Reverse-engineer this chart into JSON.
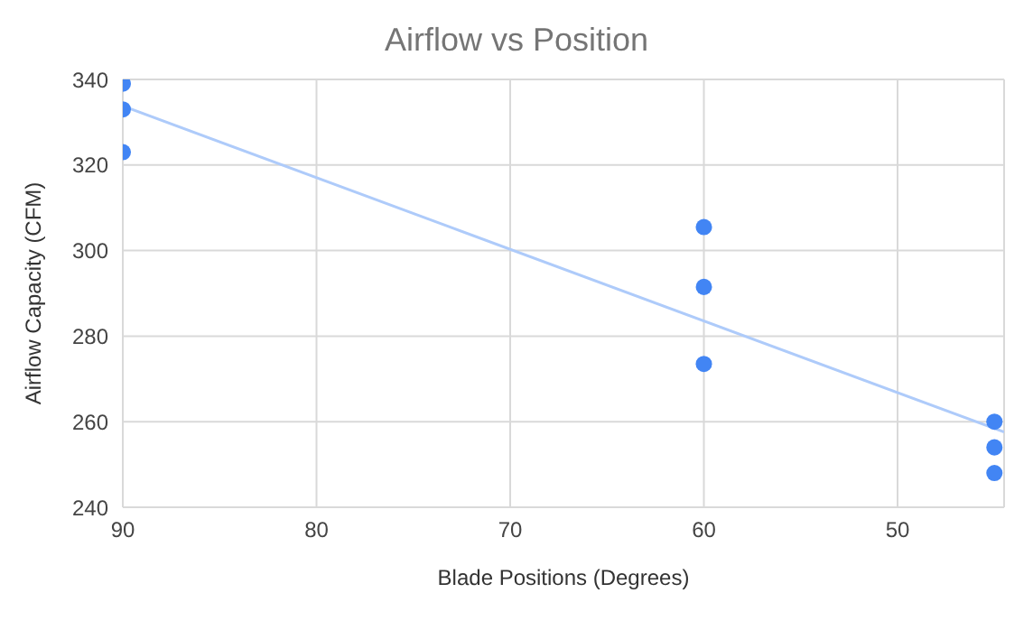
{
  "chart_data": {
    "type": "scatter",
    "title": "Airflow vs Position",
    "xlabel": "Blade Positions (Degrees)",
    "ylabel": "Airflow Capacity (CFM)",
    "x": [
      90,
      90,
      90,
      60,
      60,
      60,
      45,
      45,
      45
    ],
    "series": [
      {
        "color": "#4285f4",
        "values": [
          339,
          333,
          323,
          305.5,
          291.5,
          273.5,
          260,
          254,
          248
        ],
        "marker": "circle"
      },
      {
        "type": "line",
        "color": "#aecbfa",
        "x": [
          90,
          44.5
        ],
        "values": [
          333.8,
          257.6
        ],
        "marker": "none"
      }
    ],
    "xlim": [
      90,
      44.5
    ],
    "xticks": [
      90,
      80,
      70,
      60,
      50
    ],
    "ylim": [
      240,
      340
    ],
    "yticks": [
      240,
      260,
      280,
      300,
      320,
      340
    ],
    "grid": true
  }
}
